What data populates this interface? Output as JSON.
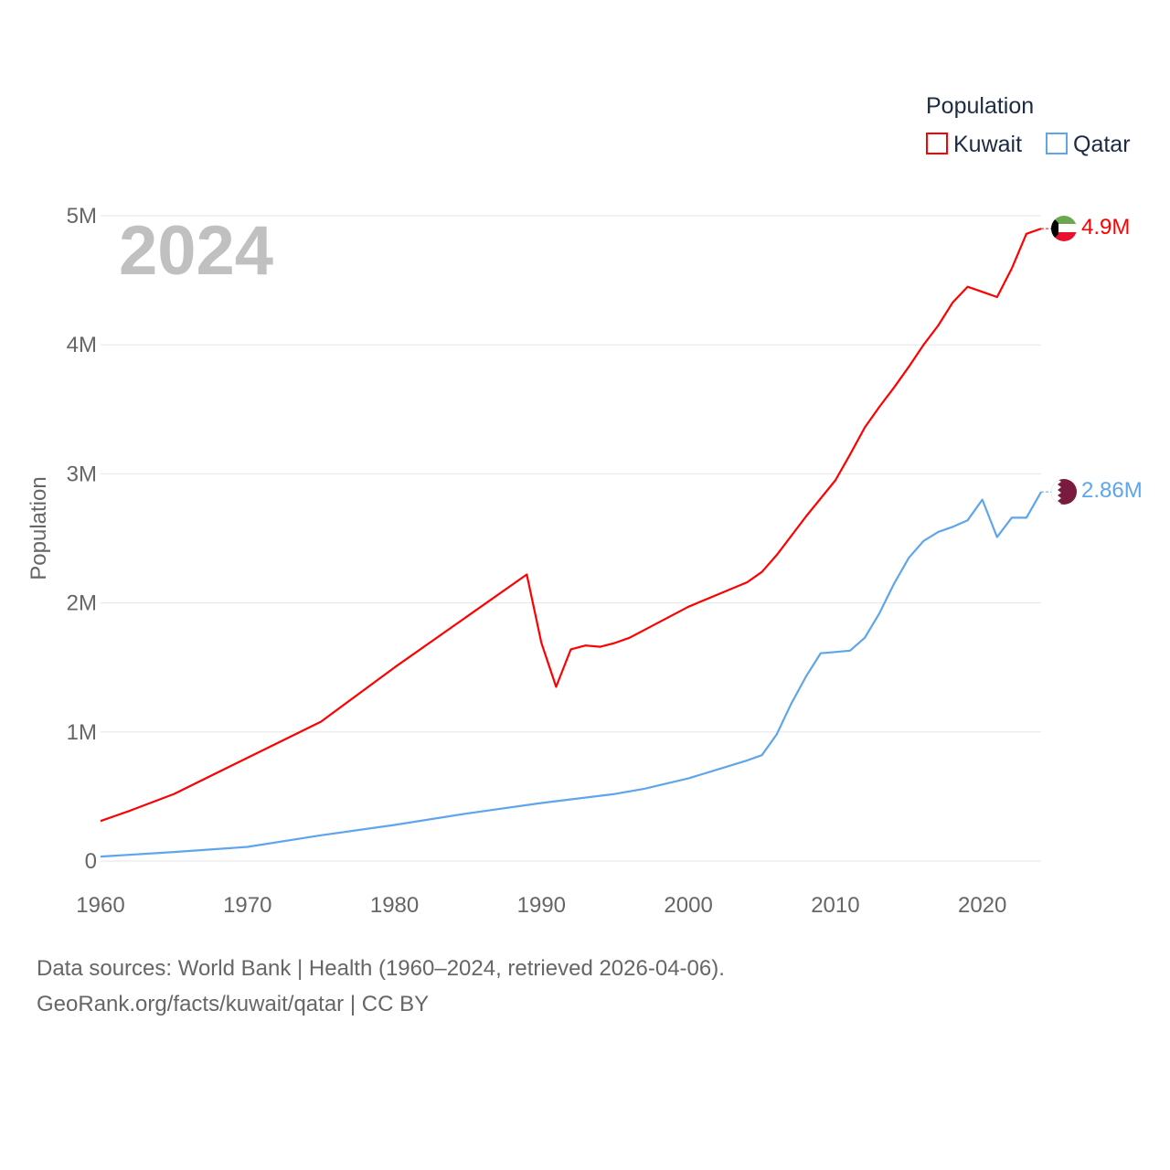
{
  "chart_data": {
    "type": "line",
    "ylabel": "Population",
    "year_label": "2024",
    "legend_title": "Population",
    "legend_placement": "top-right",
    "ylim": [
      0,
      5000000
    ],
    "xlim": [
      1960,
      2024
    ],
    "y_ticks": [
      {
        "v": 0,
        "label": "0"
      },
      {
        "v": 1000000,
        "label": "1M"
      },
      {
        "v": 2000000,
        "label": "2M"
      },
      {
        "v": 3000000,
        "label": "3M"
      },
      {
        "v": 4000000,
        "label": "4M"
      },
      {
        "v": 5000000,
        "label": "5M"
      }
    ],
    "x_ticks": [
      {
        "v": 1960,
        "label": "1960"
      },
      {
        "v": 1970,
        "label": "1970"
      },
      {
        "v": 1980,
        "label": "1980"
      },
      {
        "v": 1990,
        "label": "1990"
      },
      {
        "v": 2000,
        "label": "2000"
      },
      {
        "v": 2010,
        "label": "2010"
      },
      {
        "v": 2020,
        "label": "2020"
      }
    ],
    "grid": true,
    "series": [
      {
        "name": "Kuwait",
        "color": "#ff0000",
        "end_label": "4.9M",
        "flag": "kuwait-flag",
        "points": [
          [
            1960,
            0.31
          ],
          [
            1962,
            0.39
          ],
          [
            1965,
            0.52
          ],
          [
            1970,
            0.8
          ],
          [
            1975,
            1.08
          ],
          [
            1980,
            1.5
          ],
          [
            1985,
            1.9
          ],
          [
            1989,
            2.22
          ],
          [
            1990,
            1.69
          ],
          [
            1991,
            1.35
          ],
          [
            1992,
            1.64
          ],
          [
            1993,
            1.67
          ],
          [
            1994,
            1.66
          ],
          [
            1995,
            1.69
          ],
          [
            1996,
            1.73
          ],
          [
            2000,
            1.97
          ],
          [
            2004,
            2.16
          ],
          [
            2005,
            2.24
          ],
          [
            2006,
            2.37
          ],
          [
            2008,
            2.67
          ],
          [
            2010,
            2.95
          ],
          [
            2011,
            3.15
          ],
          [
            2012,
            3.36
          ],
          [
            2013,
            3.52
          ],
          [
            2014,
            3.67
          ],
          [
            2015,
            3.83
          ],
          [
            2016,
            4.0
          ],
          [
            2017,
            4.15
          ],
          [
            2018,
            4.33
          ],
          [
            2019,
            4.45
          ],
          [
            2020,
            4.41
          ],
          [
            2021,
            4.37
          ],
          [
            2022,
            4.59
          ],
          [
            2023,
            4.86
          ],
          [
            2024,
            4.9
          ]
        ]
      },
      {
        "name": "Qatar",
        "color": "#5ea5ec",
        "end_label": "2.86M",
        "flag": "qatar-flag",
        "points": [
          [
            1960,
            0.035
          ],
          [
            1965,
            0.07
          ],
          [
            1970,
            0.11
          ],
          [
            1975,
            0.2
          ],
          [
            1980,
            0.28
          ],
          [
            1985,
            0.37
          ],
          [
            1990,
            0.45
          ],
          [
            1995,
            0.52
          ],
          [
            1997,
            0.56
          ],
          [
            2000,
            0.64
          ],
          [
            2004,
            0.78
          ],
          [
            2005,
            0.82
          ],
          [
            2006,
            0.98
          ],
          [
            2007,
            1.22
          ],
          [
            2008,
            1.43
          ],
          [
            2009,
            1.61
          ],
          [
            2010,
            1.62
          ],
          [
            2011,
            1.63
          ],
          [
            2012,
            1.73
          ],
          [
            2013,
            1.92
          ],
          [
            2014,
            2.15
          ],
          [
            2015,
            2.35
          ],
          [
            2016,
            2.48
          ],
          [
            2017,
            2.55
          ],
          [
            2018,
            2.59
          ],
          [
            2019,
            2.64
          ],
          [
            2020,
            2.8
          ],
          [
            2021,
            2.51
          ],
          [
            2022,
            2.66
          ],
          [
            2023,
            2.66
          ],
          [
            2024,
            2.86
          ]
        ]
      }
    ],
    "points_unit": "millions"
  },
  "footer": {
    "line1": "Data sources: World Bank | Health (1960–2024, retrieved 2026-04-06).",
    "line2": "GeoRank.org/facts/kuwait/qatar | CC BY"
  }
}
